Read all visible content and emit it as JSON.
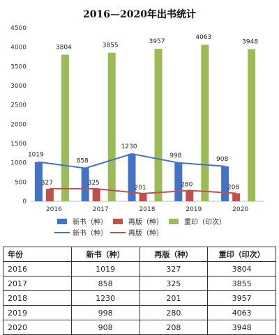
{
  "chart_data": {
    "type": "bar",
    "title": "2016—2020年出书统计",
    "categories": [
      "2016",
      "2017",
      "2018",
      "2019",
      "2020"
    ],
    "ylim": [
      0,
      4500
    ],
    "yticks": [
      0,
      500,
      1000,
      1500,
      2000,
      2500,
      3000,
      3500,
      4000,
      4500
    ],
    "grid": false,
    "legend_position": "bottom",
    "series": [
      {
        "name": "新书（种）",
        "kind": "bar",
        "color": "#4472C4",
        "values": [
          1019,
          858,
          1230,
          998,
          908
        ]
      },
      {
        "name": "再版（种）",
        "kind": "bar",
        "color": "#C0504D",
        "values": [
          327,
          325,
          201,
          280,
          208
        ]
      },
      {
        "name": "重印（印次）",
        "kind": "bar",
        "color": "#9BBB59",
        "values": [
          3804,
          3855,
          3957,
          4063,
          3948
        ]
      },
      {
        "name": "新书（种）",
        "kind": "line",
        "color": "#4472C4",
        "values": [
          1019,
          858,
          1230,
          998,
          908
        ]
      },
      {
        "name": "再版（种）",
        "kind": "line",
        "color": "#C0504D",
        "values": [
          327,
          325,
          201,
          280,
          208
        ]
      }
    ]
  },
  "table": {
    "headers": [
      "年份",
      "新书（种）",
      "再版（种）",
      "重印（印次）"
    ],
    "rows": [
      [
        "2016",
        "1019",
        "327",
        "3804"
      ],
      [
        "2017",
        "858",
        "325",
        "3855"
      ],
      [
        "2018",
        "1230",
        "201",
        "3957"
      ],
      [
        "2019",
        "998",
        "280",
        "4063"
      ],
      [
        "2020",
        "908",
        "208",
        "3948"
      ]
    ]
  }
}
